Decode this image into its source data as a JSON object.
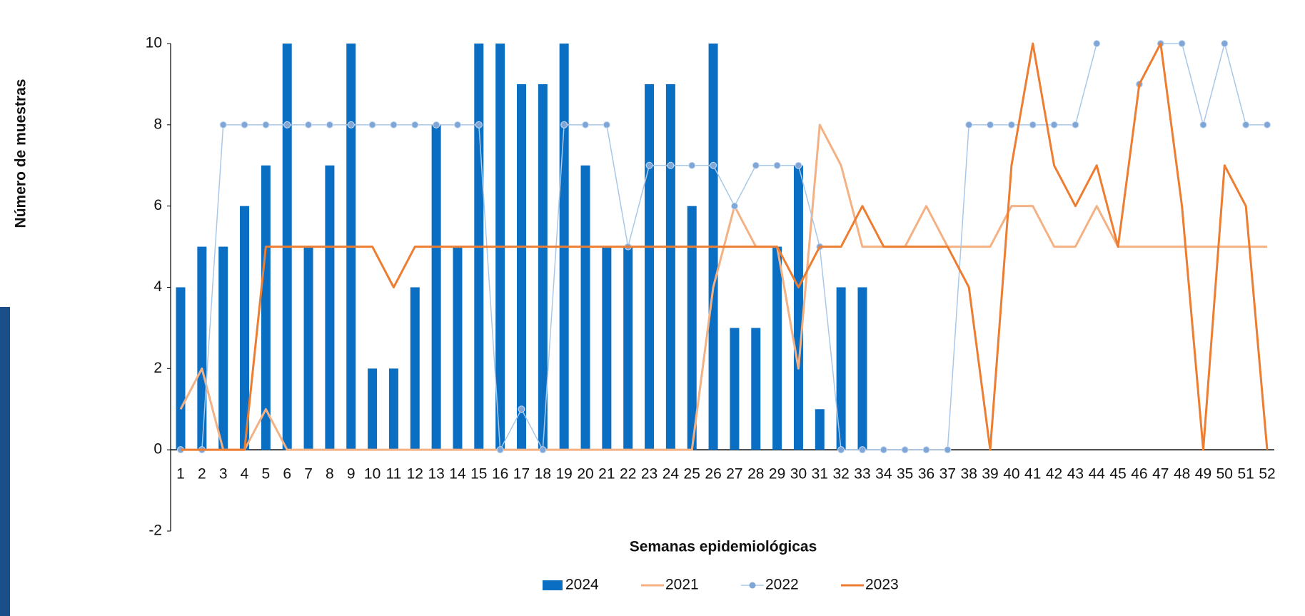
{
  "chart_data": {
    "type": "bar-line",
    "y_label": "Número de muestras",
    "x_label": "Semanas epidemiológicas",
    "categories": [
      "1",
      "2",
      "3",
      "4",
      "5",
      "6",
      "7",
      "8",
      "9",
      "10",
      "11",
      "12",
      "13",
      "14",
      "15",
      "16",
      "17",
      "18",
      "19",
      "20",
      "21",
      "22",
      "23",
      "24",
      "25",
      "26",
      "27",
      "28",
      "29",
      "30",
      "31",
      "32",
      "33",
      "34",
      "35",
      "36",
      "37",
      "38",
      "39",
      "40",
      "41",
      "42",
      "43",
      "44",
      "45",
      "46",
      "47",
      "48",
      "49",
      "50",
      "51",
      "52"
    ],
    "ylim": [
      -2,
      10
    ],
    "yticks": [
      -2,
      0,
      2,
      4,
      6,
      8,
      10
    ],
    "legend": "bottom",
    "series": [
      {
        "name": "2024",
        "type": "bar",
        "color": "#0a6fc2",
        "values": [
          4,
          5,
          5,
          6,
          7,
          10,
          5,
          7,
          10,
          2,
          2,
          4,
          8,
          5,
          10,
          10,
          9,
          9,
          10,
          7,
          5,
          5,
          9,
          9,
          6,
          10,
          3,
          3,
          5,
          7,
          1,
          4,
          4,
          null,
          null,
          null,
          null,
          null,
          null,
          null,
          null,
          null,
          null,
          null,
          null,
          null,
          null,
          null,
          null,
          null,
          null,
          null
        ]
      },
      {
        "name": "2021",
        "type": "line",
        "color": "#f4b183",
        "values": [
          1,
          2,
          0,
          0,
          1,
          0,
          0,
          0,
          0,
          0,
          0,
          0,
          0,
          0,
          0,
          0,
          0,
          0,
          0,
          0,
          0,
          0,
          0,
          0,
          0,
          4,
          6,
          5,
          5,
          2,
          8,
          7,
          5,
          5,
          5,
          6,
          5,
          5,
          5,
          6,
          6,
          5,
          5,
          6,
          5,
          5,
          5,
          5,
          5,
          5,
          5,
          5
        ]
      },
      {
        "name": "2022",
        "type": "line-marker",
        "color": "#a9c8e8",
        "values": [
          0,
          0,
          8,
          8,
          8,
          8,
          8,
          8,
          8,
          8,
          8,
          8,
          8,
          8,
          8,
          0,
          1,
          0,
          8,
          8,
          8,
          5,
          7,
          7,
          7,
          7,
          6,
          7,
          7,
          7,
          5,
          0,
          0,
          0,
          0,
          0,
          0,
          8,
          8,
          8,
          8,
          8,
          8,
          10,
          null,
          9,
          10,
          10,
          8,
          10,
          8,
          8
        ]
      },
      {
        "name": "2023",
        "type": "line",
        "color": "#ed7d31",
        "values": [
          0,
          0,
          0,
          0,
          5,
          5,
          5,
          5,
          5,
          5,
          4,
          5,
          5,
          5,
          5,
          5,
          5,
          5,
          5,
          5,
          5,
          5,
          5,
          5,
          5,
          5,
          5,
          5,
          5,
          4,
          5,
          5,
          6,
          5,
          5,
          5,
          5,
          4,
          0,
          7,
          10,
          7,
          6,
          7,
          5,
          9,
          10,
          6,
          0,
          7,
          6,
          0
        ]
      }
    ]
  }
}
